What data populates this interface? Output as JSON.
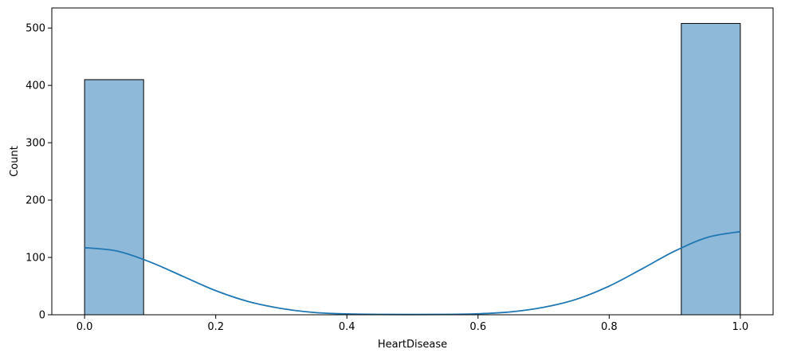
{
  "chart_data": {
    "type": "bar",
    "subtype": "histogram-with-kde",
    "xlabel": "HeartDisease",
    "ylabel": "Count",
    "xlim": [
      -0.05,
      1.05
    ],
    "ylim": [
      0,
      535
    ],
    "xticks": [
      0.0,
      0.2,
      0.4,
      0.6,
      0.8,
      1.0
    ],
    "xtick_labels": [
      "0.0",
      "0.2",
      "0.4",
      "0.6",
      "0.8",
      "1.0"
    ],
    "yticks": [
      0,
      100,
      200,
      300,
      400,
      500
    ],
    "ytick_labels": [
      "0",
      "100",
      "200",
      "300",
      "400",
      "500"
    ],
    "bins": [
      {
        "x0": 0.0,
        "x1": 0.09,
        "count": 410
      },
      {
        "x0": 0.91,
        "x1": 1.0,
        "count": 508
      }
    ],
    "kde": {
      "x": [
        0.0,
        0.05,
        0.1,
        0.15,
        0.2,
        0.25,
        0.3,
        0.35,
        0.4,
        0.45,
        0.5,
        0.55,
        0.6,
        0.65,
        0.7,
        0.75,
        0.8,
        0.85,
        0.9,
        0.95,
        1.0
      ],
      "y": [
        117,
        111,
        92,
        67,
        42,
        23,
        11,
        4,
        1.5,
        0.6,
        0.4,
        0.6,
        1.7,
        5,
        13,
        27,
        50,
        80,
        111,
        135,
        145
      ]
    },
    "grid": false,
    "legend": false,
    "colors": {
      "bar_fill": "#8fb9d9",
      "bar_edge": "#000000",
      "kde_line": "#1f77b4",
      "axis": "#000000"
    }
  }
}
